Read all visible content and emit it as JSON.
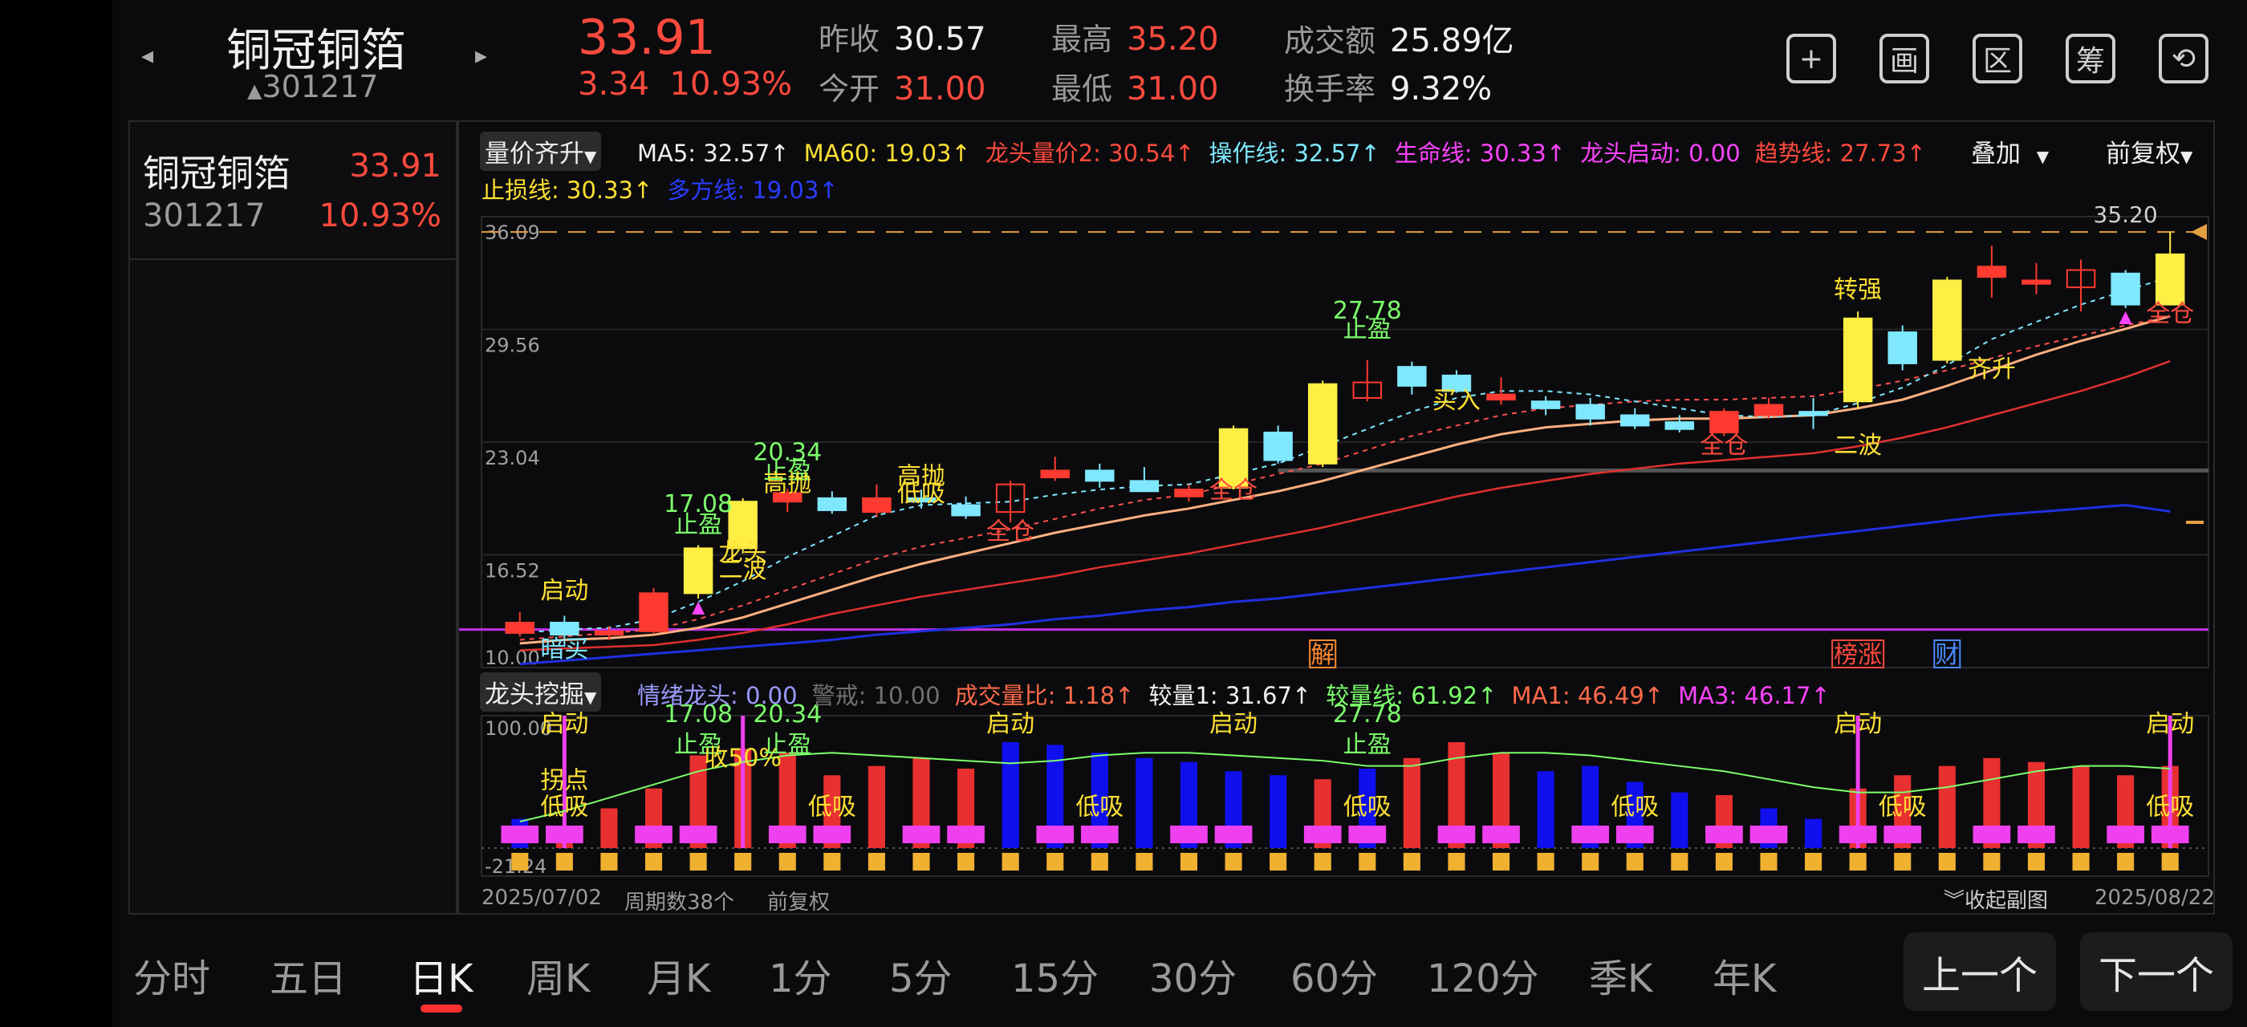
{
  "header": {
    "stock_name": "铜冠铜箔",
    "stock_code": "301217",
    "price": "33.91",
    "change": "3.34",
    "change_pct": "10.93%",
    "fields": [
      {
        "label": "昨收",
        "value": "30.57",
        "color": "#f0f0f0"
      },
      {
        "label": "今开",
        "value": "31.00",
        "color": "#ff4a3d"
      },
      {
        "label": "最高",
        "value": "35.20",
        "color": "#ff4a3d"
      },
      {
        "label": "最低",
        "value": "31.00",
        "color": "#ff4a3d"
      },
      {
        "label": "成交额",
        "value": "25.89亿",
        "color": "#f0f0f0"
      },
      {
        "label": "换手率",
        "value": "9.32%",
        "color": "#f0f0f0"
      }
    ],
    "buttons": [
      {
        "name": "add-watchlist-button",
        "glyph": "+"
      },
      {
        "name": "draw-button",
        "glyph": "画"
      },
      {
        "name": "interval-button",
        "glyph": "区"
      },
      {
        "name": "chips-button",
        "glyph": "筹"
      },
      {
        "name": "rotate-screen-button",
        "glyph": "⟲"
      }
    ]
  },
  "side_panel": {
    "name": "铜冠铜箔",
    "price": "33.91",
    "code": "301217",
    "change_pct": "10.93%"
  },
  "main_indicator": {
    "selector": "量价齐升",
    "overlay_label": "叠加",
    "adjust_label": "前复权",
    "items": [
      {
        "text": "MA5: 32.57↑",
        "color": "#f0f0f0"
      },
      {
        "text": "MA60: 19.03↑",
        "color": "#ffe033"
      },
      {
        "text": "龙头量价2: 30.54↑",
        "color": "#ff4a3d"
      },
      {
        "text": "操作线: 32.57↑",
        "color": "#7fe8ff"
      },
      {
        "text": "生命线: 30.33↑",
        "color": "#ff44ff"
      },
      {
        "text": "龙头启动: 0.00",
        "color": "#ff44ff"
      },
      {
        "text": "趋势线: 27.73↑",
        "color": "#ff4a3d"
      },
      {
        "text": "止损线: 30.33↑",
        "color": "#ffe033"
      },
      {
        "text": "多方线: 19.03↑",
        "color": "#2a3cff"
      }
    ],
    "y_ticks": [
      "36.09",
      "29.56",
      "23.04",
      "16.52",
      "10.00"
    ],
    "max_label": "35.20"
  },
  "price_chart": {
    "candles": [
      {
        "o": 12.0,
        "h": 13.2,
        "l": 11.8,
        "c": 12.6
      },
      {
        "o": 12.6,
        "h": 13.0,
        "l": 11.2,
        "c": 11.9
      },
      {
        "o": 11.9,
        "h": 12.4,
        "l": 11.6,
        "c": 12.1
      },
      {
        "o": 12.1,
        "h": 14.6,
        "l": 12.0,
        "c": 14.3
      },
      {
        "o": 14.3,
        "h": 17.08,
        "l": 14.0,
        "c": 16.9
      },
      {
        "o": 16.9,
        "h": 19.8,
        "l": 16.6,
        "c": 19.6
      },
      {
        "o": 19.6,
        "h": 20.34,
        "l": 19.0,
        "c": 20.1
      },
      {
        "o": 19.8,
        "h": 20.2,
        "l": 18.9,
        "c": 19.1
      },
      {
        "o": 19.0,
        "h": 20.6,
        "l": 18.7,
        "c": 19.8
      },
      {
        "o": 19.8,
        "h": 20.3,
        "l": 19.2,
        "c": 19.6
      },
      {
        "o": 19.4,
        "h": 19.9,
        "l": 18.6,
        "c": 18.8
      },
      {
        "o": 19.0,
        "h": 20.8,
        "l": 18.4,
        "c": 20.6
      },
      {
        "o": 21.0,
        "h": 22.2,
        "l": 20.8,
        "c": 21.4
      },
      {
        "o": 21.4,
        "h": 21.8,
        "l": 20.4,
        "c": 20.8
      },
      {
        "o": 20.8,
        "h": 21.6,
        "l": 20.2,
        "c": 20.2
      },
      {
        "o": 19.9,
        "h": 20.6,
        "l": 19.6,
        "c": 20.3
      },
      {
        "o": 20.4,
        "h": 24.0,
        "l": 20.3,
        "c": 23.8
      },
      {
        "o": 23.6,
        "h": 24.0,
        "l": 21.8,
        "c": 22.0
      },
      {
        "o": 21.8,
        "h": 26.6,
        "l": 21.6,
        "c": 26.4
      },
      {
        "o": 25.6,
        "h": 27.78,
        "l": 25.4,
        "c": 26.5
      },
      {
        "o": 27.4,
        "h": 27.7,
        "l": 25.8,
        "c": 26.3
      },
      {
        "o": 26.9,
        "h": 27.2,
        "l": 25.9,
        "c": 26.0
      },
      {
        "o": 25.5,
        "h": 26.8,
        "l": 25.2,
        "c": 25.8
      },
      {
        "o": 25.4,
        "h": 25.7,
        "l": 24.6,
        "c": 25.0
      },
      {
        "o": 25.2,
        "h": 25.6,
        "l": 24.0,
        "c": 24.4
      },
      {
        "o": 24.6,
        "h": 25.0,
        "l": 23.8,
        "c": 24.0
      },
      {
        "o": 24.2,
        "h": 24.6,
        "l": 23.6,
        "c": 23.8
      },
      {
        "o": 23.6,
        "h": 25.0,
        "l": 23.4,
        "c": 24.8
      },
      {
        "o": 24.6,
        "h": 25.6,
        "l": 24.4,
        "c": 25.2
      },
      {
        "o": 24.8,
        "h": 25.6,
        "l": 23.8,
        "c": 24.6
      },
      {
        "o": 25.4,
        "h": 30.6,
        "l": 25.0,
        "c": 30.2
      },
      {
        "o": 29.4,
        "h": 29.8,
        "l": 27.2,
        "c": 27.6
      },
      {
        "o": 27.8,
        "h": 32.6,
        "l": 27.6,
        "c": 32.4
      },
      {
        "o": 32.6,
        "h": 34.4,
        "l": 31.4,
        "c": 33.2
      },
      {
        "o": 32.2,
        "h": 33.4,
        "l": 31.6,
        "c": 32.4
      },
      {
        "o": 32.0,
        "h": 33.6,
        "l": 30.6,
        "c": 33.0
      },
      {
        "o": 32.8,
        "h": 33.0,
        "l": 30.8,
        "c": 31.0
      },
      {
        "o": 31.0,
        "h": 35.2,
        "l": 31.0,
        "c": 33.91
      }
    ],
    "ma_op": [
      12.0,
      12.2,
      12.3,
      12.8,
      13.8,
      15.0,
      16.4,
      17.6,
      18.8,
      19.4,
      19.5,
      19.6,
      20.0,
      20.3,
      20.5,
      20.6,
      21.2,
      21.8,
      22.8,
      23.8,
      24.8,
      25.6,
      26.0,
      26.0,
      25.8,
      25.4,
      25.0,
      24.6,
      24.5,
      24.6,
      25.3,
      26.2,
      27.5,
      29.0,
      30.0,
      31.0,
      31.8,
      32.6
    ],
    "life_line": [
      11.6,
      11.8,
      12.0,
      12.2,
      12.8,
      13.6,
      14.5,
      15.4,
      16.3,
      17.0,
      17.5,
      18.0,
      18.6,
      19.2,
      19.7,
      20.0,
      20.6,
      21.2,
      21.8,
      22.6,
      23.4,
      24.0,
      24.6,
      25.0,
      25.2,
      25.4,
      25.5,
      25.5,
      25.6,
      25.7,
      26.1,
      26.6,
      27.2,
      27.9,
      28.6,
      29.2,
      29.8,
      30.33
    ],
    "stop_line": [
      11.4,
      11.6,
      11.7,
      11.9,
      12.3,
      12.9,
      13.7,
      14.5,
      15.3,
      16.0,
      16.6,
      17.2,
      17.8,
      18.3,
      18.8,
      19.2,
      19.7,
      20.2,
      20.8,
      21.5,
      22.2,
      22.9,
      23.5,
      23.9,
      24.1,
      24.3,
      24.4,
      24.4,
      24.5,
      24.6,
      25.0,
      25.5,
      26.3,
      27.2,
      28.1,
      28.9,
      29.6,
      30.33
    ],
    "trend_line": [
      11.0,
      11.1,
      11.2,
      11.3,
      11.6,
      12.0,
      12.5,
      13.1,
      13.6,
      14.1,
      14.5,
      14.9,
      15.3,
      15.8,
      16.2,
      16.6,
      17.1,
      17.6,
      18.1,
      18.7,
      19.3,
      19.9,
      20.4,
      20.8,
      21.2,
      21.5,
      21.8,
      22.0,
      22.2,
      22.4,
      22.8,
      23.3,
      23.9,
      24.6,
      25.3,
      26.0,
      26.8,
      27.73
    ],
    "multi_line": [
      10.2,
      10.4,
      10.6,
      10.8,
      11.0,
      11.2,
      11.4,
      11.6,
      11.9,
      12.1,
      12.3,
      12.5,
      12.8,
      13.0,
      13.3,
      13.5,
      13.8,
      14.0,
      14.3,
      14.6,
      14.9,
      15.2,
      15.5,
      15.8,
      16.1,
      16.4,
      16.7,
      17.0,
      17.3,
      17.6,
      17.9,
      18.2,
      18.5,
      18.8,
      19.0,
      19.2,
      19.4,
      19.03
    ],
    "annotations": [
      {
        "i": 1,
        "text": "启动",
        "price": 14.0,
        "color": "#ffe033"
      },
      {
        "i": 1,
        "text": "暗买",
        "price": 10.6,
        "color": "#7fe8ff"
      },
      {
        "i": 4,
        "text": "17.08",
        "price": 19.0,
        "color": "#7cff6b"
      },
      {
        "i": 4,
        "text": "止盈",
        "price": 17.8,
        "color": "#7cff6b"
      },
      {
        "i": 5,
        "text": "龙头",
        "price": 16.2,
        "color": "#ffe033"
      },
      {
        "i": 5,
        "text": "二波",
        "price": 15.2,
        "color": "#ffe033"
      },
      {
        "i": 6,
        "text": "20.34",
        "price": 22.0,
        "color": "#7cff6b"
      },
      {
        "i": 6,
        "text": "止盈",
        "price": 20.9,
        "color": "#7cff6b"
      },
      {
        "i": 6,
        "text": "高抛",
        "price": 20.2,
        "color": "#ffe033"
      },
      {
        "i": 9,
        "text": "高抛",
        "price": 20.6,
        "color": "#ffe033"
      },
      {
        "i": 9,
        "text": "低吸",
        "price": 19.6,
        "color": "#ffe033"
      },
      {
        "i": 11,
        "text": "全仓",
        "price": 17.4,
        "color": "#ff4a3d"
      },
      {
        "i": 16,
        "text": "全仓",
        "price": 19.8,
        "color": "#ff4a3d"
      },
      {
        "i": 19,
        "text": "27.78",
        "price": 30.2,
        "color": "#7cff6b"
      },
      {
        "i": 19,
        "text": "止盈",
        "price": 29.1,
        "color": "#7cff6b"
      },
      {
        "i": 21,
        "text": "买入",
        "price": 25.0,
        "color": "#ffe033"
      },
      {
        "i": 27,
        "text": "全仓",
        "price": 22.4,
        "color": "#ff4a3d"
      },
      {
        "i": 30,
        "text": "转强",
        "price": 31.4,
        "color": "#ffe033"
      },
      {
        "i": 30,
        "text": "二波",
        "price": 22.4,
        "color": "#ffe033"
      },
      {
        "i": 33,
        "text": "齐升",
        "price": 26.8,
        "color": "#ffe033"
      },
      {
        "i": 37,
        "text": "全仓",
        "price": 30.0,
        "color": "#ff4a3d"
      }
    ],
    "bottom_tags": [
      {
        "i": 18,
        "text": "解",
        "color": "#ff8a30"
      },
      {
        "i": 30,
        "text": "榜涨",
        "color": "#ff4a3d"
      },
      {
        "i": 32,
        "text": "财",
        "color": "#4a8aff"
      }
    ]
  },
  "sub_indicator": {
    "selector": "龙头挖掘",
    "items": [
      {
        "text": "情绪龙头: 0.00",
        "color": "#9a9aff"
      },
      {
        "text": "警戒: 10.00",
        "color": "#707070"
      },
      {
        "text": "成交量比: 1.18↑",
        "color": "#ff6a4a"
      },
      {
        "text": "较量1: 31.67↑",
        "color": "#f0f0f0"
      },
      {
        "text": "较量线: 61.92↑",
        "color": "#7cff6b"
      },
      {
        "text": "MA1: 46.49↑",
        "color": "#ff6a4a"
      },
      {
        "text": "MA3: 46.17↑",
        "color": "#ff44ff"
      }
    ],
    "y_top": "100.00",
    "y_bottom": "-21.24",
    "bars": [
      {
        "v": 22,
        "c": "b"
      },
      {
        "v": 10,
        "c": "r"
      },
      {
        "v": 30,
        "c": "r"
      },
      {
        "v": 45,
        "c": "r"
      },
      {
        "v": 70,
        "c": "r"
      },
      {
        "v": 75,
        "c": "r"
      },
      {
        "v": 72,
        "c": "r"
      },
      {
        "v": 55,
        "c": "r"
      },
      {
        "v": 62,
        "c": "r"
      },
      {
        "v": 68,
        "c": "r"
      },
      {
        "v": 60,
        "c": "r"
      },
      {
        "v": 80,
        "c": "b"
      },
      {
        "v": 78,
        "c": "b"
      },
      {
        "v": 72,
        "c": "b"
      },
      {
        "v": 68,
        "c": "b"
      },
      {
        "v": 65,
        "c": "b"
      },
      {
        "v": 58,
        "c": "b"
      },
      {
        "v": 55,
        "c": "b"
      },
      {
        "v": 52,
        "c": "r"
      },
      {
        "v": 60,
        "c": "b"
      },
      {
        "v": 68,
        "c": "r"
      },
      {
        "v": 80,
        "c": "r"
      },
      {
        "v": 72,
        "c": "r"
      },
      {
        "v": 58,
        "c": "b"
      },
      {
        "v": 62,
        "c": "b"
      },
      {
        "v": 50,
        "c": "b"
      },
      {
        "v": 42,
        "c": "b"
      },
      {
        "v": 40,
        "c": "r"
      },
      {
        "v": 30,
        "c": "b"
      },
      {
        "v": 22,
        "c": "b"
      },
      {
        "v": 45,
        "c": "r"
      },
      {
        "v": 55,
        "c": "r"
      },
      {
        "v": 62,
        "c": "r"
      },
      {
        "v": 68,
        "c": "r"
      },
      {
        "v": 65,
        "c": "r"
      },
      {
        "v": 62,
        "c": "r"
      },
      {
        "v": 55,
        "c": "r"
      },
      {
        "v": 62,
        "c": "r"
      }
    ],
    "line": [
      20,
      28,
      38,
      48,
      58,
      65,
      70,
      72,
      70,
      68,
      66,
      64,
      66,
      70,
      72,
      72,
      70,
      68,
      66,
      62,
      62,
      68,
      72,
      72,
      70,
      66,
      62,
      58,
      52,
      46,
      42,
      42,
      46,
      52,
      58,
      62,
      62,
      60
    ],
    "labels": [
      {
        "i": 1,
        "text": "启动",
        "v": 88,
        "color": "#ffe033"
      },
      {
        "i": 1,
        "text": "拐点",
        "v": 45,
        "color": "#ffe033"
      },
      {
        "i": 1,
        "text": "低吸",
        "v": 25,
        "color": "#ffe033"
      },
      {
        "i": 4,
        "text": "17.08",
        "v": 95,
        "color": "#7cff6b"
      },
      {
        "i": 4,
        "text": "止盈",
        "v": 72,
        "color": "#7cff6b"
      },
      {
        "i": 5,
        "text": "收50%",
        "v": 62,
        "color": "#ffe033"
      },
      {
        "i": 6,
        "text": "20.34",
        "v": 95,
        "color": "#7cff6b"
      },
      {
        "i": 6,
        "text": "止盈",
        "v": 72,
        "color": "#7cff6b"
      },
      {
        "i": 7,
        "text": "低吸",
        "v": 25,
        "color": "#ffe033"
      },
      {
        "i": 11,
        "text": "启动",
        "v": 88,
        "color": "#ffe033"
      },
      {
        "i": 13,
        "text": "低吸",
        "v": 25,
        "color": "#ffe033"
      },
      {
        "i": 16,
        "text": "启动",
        "v": 88,
        "color": "#ffe033"
      },
      {
        "i": 19,
        "text": "27.78",
        "v": 95,
        "color": "#7cff6b"
      },
      {
        "i": 19,
        "text": "止盈",
        "v": 72,
        "color": "#7cff6b"
      },
      {
        "i": 19,
        "text": "低吸",
        "v": 25,
        "color": "#ffe033"
      },
      {
        "i": 25,
        "text": "低吸",
        "v": 25,
        "color": "#ffe033"
      },
      {
        "i": 30,
        "text": "启动",
        "v": 88,
        "color": "#ffe033"
      },
      {
        "i": 31,
        "text": "低吸",
        "v": 25,
        "color": "#ffe033"
      },
      {
        "i": 37,
        "text": "启动",
        "v": 88,
        "color": "#ffe033"
      },
      {
        "i": 37,
        "text": "低吸",
        "v": 25,
        "color": "#ffe033"
      }
    ]
  },
  "footer": {
    "start_date": "2025/07/02",
    "period_count": "周期数38个",
    "adjust": "前复权",
    "collapse": "收起副图",
    "end_date": "2025/08/22"
  },
  "periods": [
    "分时",
    "五日",
    "日K",
    "周K",
    "月K",
    "1分",
    "5分",
    "15分",
    "30分",
    "60分",
    "120分",
    "季K",
    "年K"
  ],
  "active_period": "日K",
  "nav": {
    "prev": "上一个",
    "next": "下一个"
  }
}
